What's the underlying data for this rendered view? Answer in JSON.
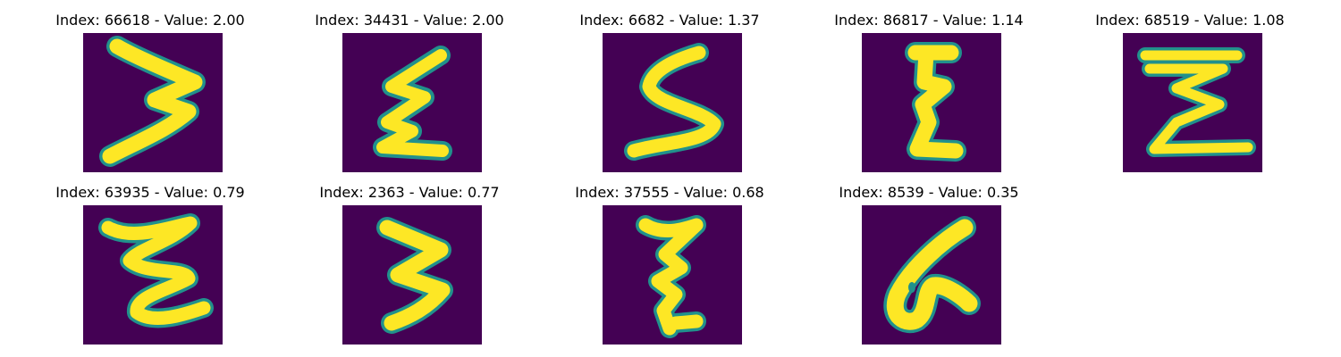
{
  "figure": {
    "panels": [
      {
        "title": "Index: 66618 - Value: 2.00",
        "glyph": "wave-3"
      },
      {
        "title": "Index: 34431 - Value: 2.00",
        "glyph": "zigzag"
      },
      {
        "title": "Index: 6682 - Value: 1.37",
        "glyph": "s-shape"
      },
      {
        "title": "Index: 86817 - Value: 1.14",
        "glyph": "vertical-e"
      },
      {
        "title": "Index: 68519 - Value: 1.08",
        "glyph": "sigma"
      },
      {
        "title": "Index: 63935 - Value: 0.79",
        "glyph": "sigma-round"
      },
      {
        "title": "Index: 2363 - Value: 0.77",
        "glyph": "wave-3"
      },
      {
        "title": "Index: 37555 - Value: 0.68",
        "glyph": "zigzag"
      },
      {
        "title": "Index: 8539 - Value: 0.35",
        "glyph": "loop-6"
      }
    ]
  },
  "colors": {
    "background": "#440154",
    "stroke_core": "#fde725",
    "stroke_edge": "#21918c"
  }
}
